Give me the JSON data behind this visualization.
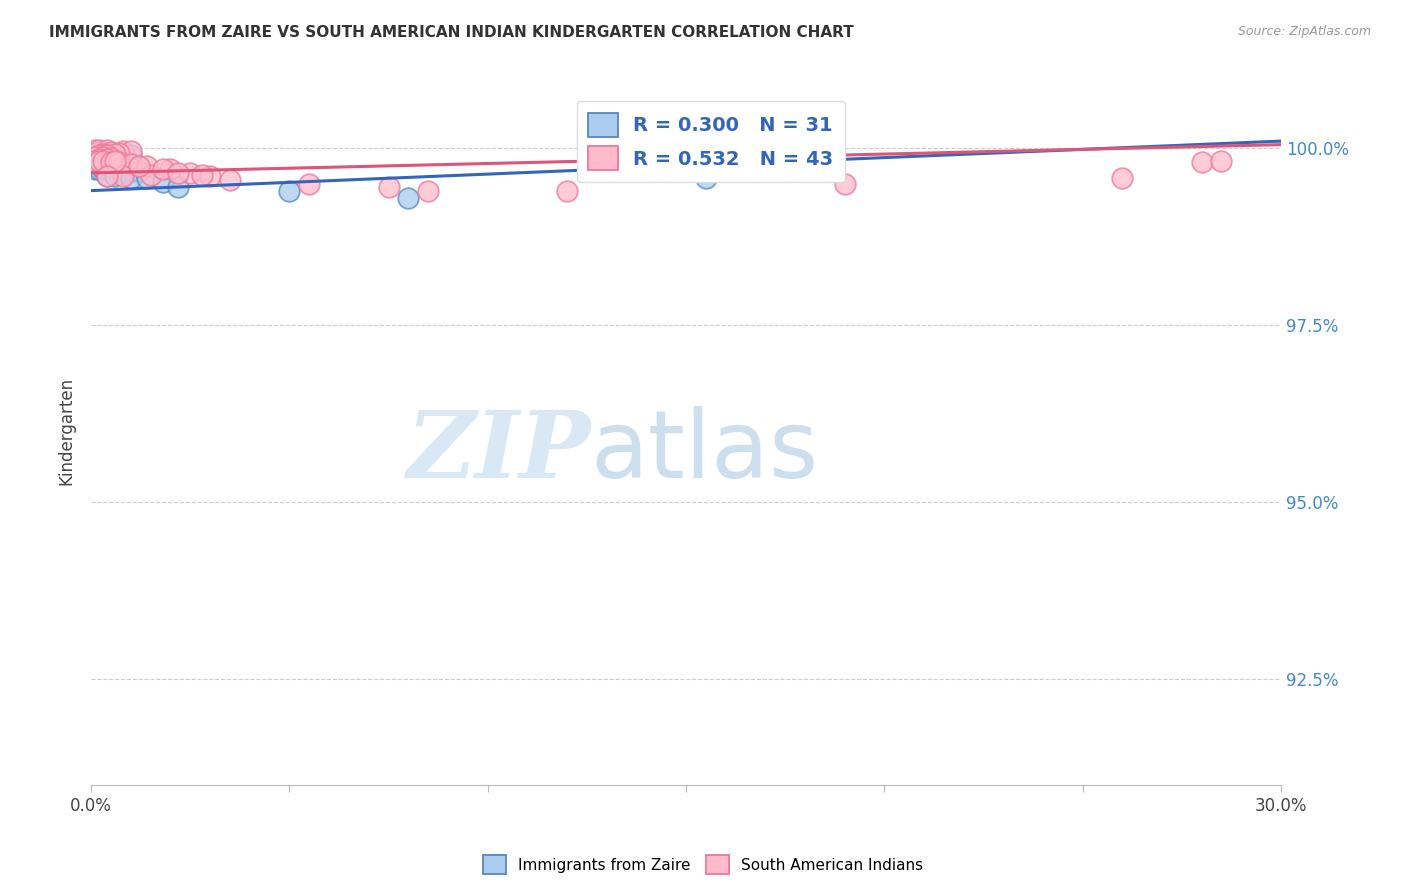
{
  "title": "IMMIGRANTS FROM ZAIRE VS SOUTH AMERICAN INDIAN KINDERGARTEN CORRELATION CHART",
  "source": "Source: ZipAtlas.com",
  "ylabel": "Kindergarten",
  "ytick_labels": [
    "100.0%",
    "97.5%",
    "95.0%",
    "92.5%"
  ],
  "ytick_values": [
    1.0,
    0.975,
    0.95,
    0.925
  ],
  "xlim": [
    0.0,
    0.3
  ],
  "ylim": [
    0.91,
    1.01
  ],
  "legend1_label": "R = 0.300   N = 31",
  "legend2_label": "R = 0.532   N = 43",
  "blue_dots": [
    [
      0.002,
      0.9995
    ],
    [
      0.003,
      0.9993
    ],
    [
      0.004,
      0.9992
    ],
    [
      0.005,
      0.9992
    ],
    [
      0.006,
      0.9992
    ],
    [
      0.008,
      0.999
    ],
    [
      0.01,
      0.999
    ],
    [
      0.003,
      0.9985
    ],
    [
      0.004,
      0.9985
    ],
    [
      0.002,
      0.998
    ],
    [
      0.003,
      0.998
    ],
    [
      0.005,
      0.998
    ],
    [
      0.002,
      0.9975
    ],
    [
      0.003,
      0.9975
    ],
    [
      0.004,
      0.9975
    ],
    [
      0.001,
      0.997
    ],
    [
      0.002,
      0.997
    ],
    [
      0.003,
      0.997
    ],
    [
      0.006,
      0.9968
    ],
    [
      0.01,
      0.9968
    ],
    [
      0.012,
      0.9968
    ],
    [
      0.008,
      0.9965
    ],
    [
      0.004,
      0.996
    ],
    [
      0.006,
      0.996
    ],
    [
      0.01,
      0.9958
    ],
    [
      0.014,
      0.9958
    ],
    [
      0.018,
      0.9952
    ],
    [
      0.022,
      0.9945
    ],
    [
      0.05,
      0.994
    ],
    [
      0.08,
      0.993
    ],
    [
      0.155,
      0.9958
    ]
  ],
  "pink_dots": [
    [
      0.001,
      0.9998
    ],
    [
      0.002,
      0.9997
    ],
    [
      0.004,
      0.9997
    ],
    [
      0.008,
      0.9996
    ],
    [
      0.01,
      0.9996
    ],
    [
      0.005,
      0.9994
    ],
    [
      0.007,
      0.9993
    ],
    [
      0.003,
      0.9992
    ],
    [
      0.006,
      0.9992
    ],
    [
      0.002,
      0.999
    ],
    [
      0.004,
      0.999
    ],
    [
      0.001,
      0.9988
    ],
    [
      0.003,
      0.9987
    ],
    [
      0.005,
      0.9986
    ],
    [
      0.002,
      0.9985
    ],
    [
      0.004,
      0.9984
    ],
    [
      0.001,
      0.9982
    ],
    [
      0.002,
      0.9982
    ],
    [
      0.003,
      0.9982
    ],
    [
      0.005,
      0.998
    ],
    [
      0.007,
      0.998
    ],
    [
      0.01,
      0.9978
    ],
    [
      0.014,
      0.9975
    ],
    [
      0.02,
      0.997
    ],
    [
      0.025,
      0.9965
    ],
    [
      0.015,
      0.9962
    ],
    [
      0.008,
      0.996
    ],
    [
      0.03,
      0.996
    ],
    [
      0.035,
      0.9955
    ],
    [
      0.055,
      0.995
    ],
    [
      0.075,
      0.9945
    ],
    [
      0.085,
      0.994
    ],
    [
      0.12,
      0.994
    ],
    [
      0.19,
      0.995
    ],
    [
      0.26,
      0.9958
    ],
    [
      0.28,
      0.998
    ],
    [
      0.285,
      0.9982
    ],
    [
      0.012,
      0.9975
    ],
    [
      0.018,
      0.997
    ],
    [
      0.006,
      0.9982
    ],
    [
      0.004,
      0.996
    ],
    [
      0.022,
      0.9965
    ],
    [
      0.028,
      0.9962
    ]
  ],
  "blue_line_x": [
    0.0,
    0.3
  ],
  "blue_line_y": [
    0.994,
    1.001
  ],
  "pink_line_x": [
    0.0,
    0.3
  ],
  "pink_line_y": [
    0.9965,
    1.0005
  ]
}
